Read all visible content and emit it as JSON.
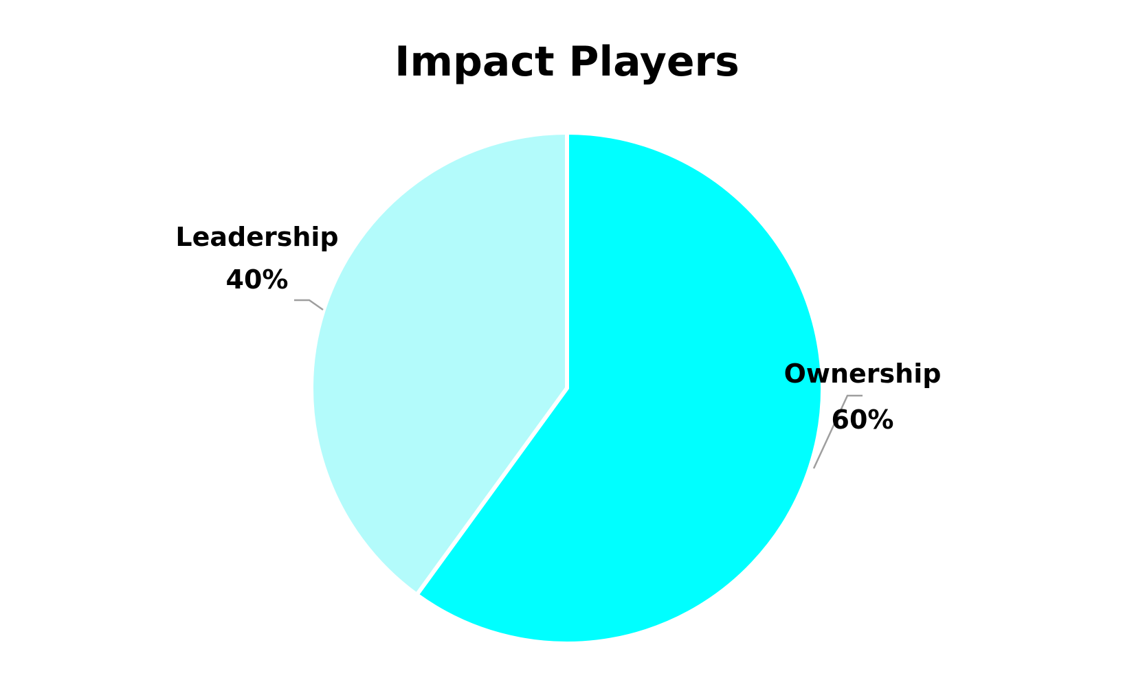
{
  "chart_data": {
    "type": "pie",
    "title": "Impact Players",
    "slices": [
      {
        "label": "Ownership",
        "value": 60,
        "value_label": "60%",
        "color": "#00ffff"
      },
      {
        "label": "Leadership",
        "value": 40,
        "value_label": "40%",
        "color": "#b3fbfb"
      }
    ],
    "start": "12 o'clock",
    "direction": "clockwise",
    "legend": "none",
    "labels": "outside with leader lines",
    "leader_line_color": "#9e9e9e",
    "slice_border_color": "#ffffff"
  }
}
